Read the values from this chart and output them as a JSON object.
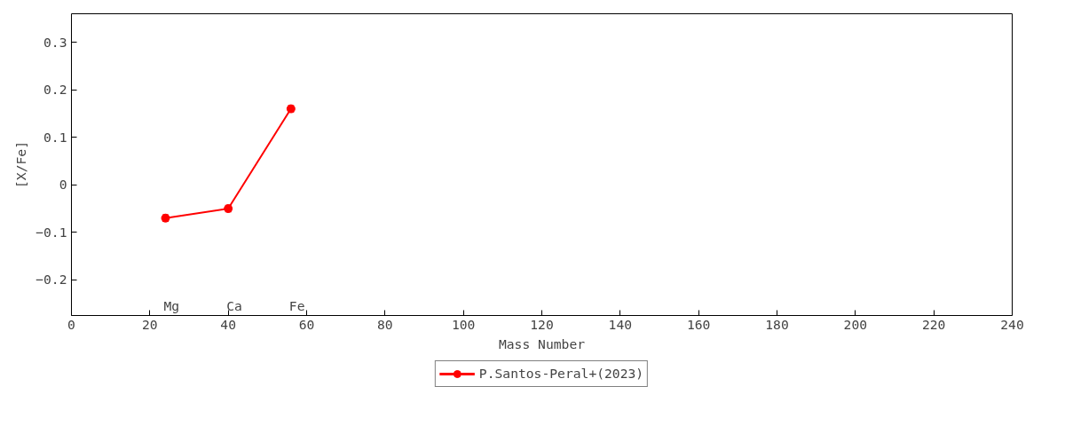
{
  "chart_data": {
    "type": "line",
    "xlabel": "Mass Number",
    "ylabel": "[X/Fe]",
    "x": [
      24,
      40,
      56
    ],
    "series": [
      {
        "name": "P.Santos-Peral+(2023)",
        "color": "#ff0000",
        "values": [
          -0.07,
          -0.05,
          0.16
        ],
        "errors": [
          0.005,
          0.005,
          0.005
        ]
      }
    ],
    "xlim": [
      0,
      240
    ],
    "xticks": [
      0,
      20,
      40,
      60,
      80,
      100,
      120,
      140,
      160,
      180,
      200,
      220,
      240
    ],
    "ylim": [
      -0.275,
      0.36
    ],
    "yticks": [
      -0.2,
      -0.1,
      0,
      0.1,
      0.2,
      0.3
    ],
    "annotations": [
      "Mg",
      "Ca",
      "Fe"
    ],
    "legend": "bottom",
    "grid": false,
    "marker": "circle",
    "line_style": "solid"
  }
}
